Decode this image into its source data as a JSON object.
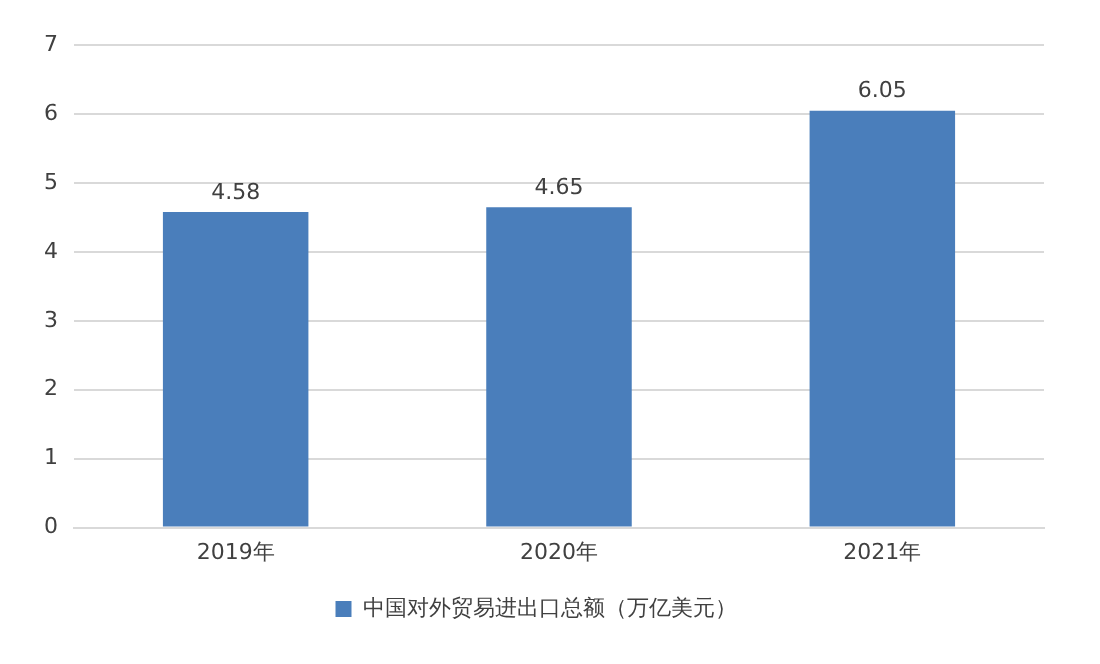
{
  "chart_data": {
    "type": "bar",
    "categories": [
      "2019年",
      "2020年",
      "2021年"
    ],
    "series": [
      {
        "name": "中国对外贸易进出口总额（万亿美元）",
        "color": "#4a7ebb",
        "values": [
          4.58,
          4.65,
          6.05
        ]
      }
    ],
    "ylim": [
      0,
      7
    ],
    "yticks": [
      0,
      1,
      2,
      3,
      4,
      5,
      6,
      7
    ],
    "grid": "y",
    "legend": "bottom",
    "data_labels": true
  }
}
